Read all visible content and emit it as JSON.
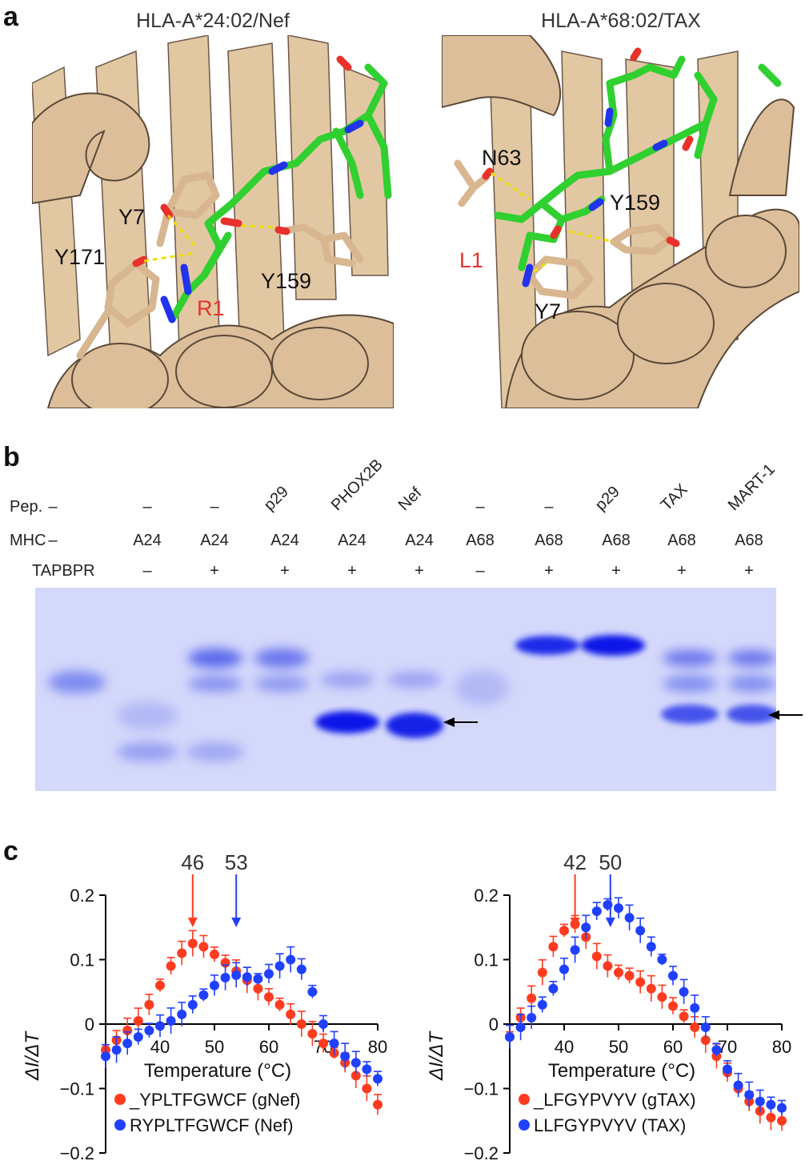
{
  "panel_a": {
    "letter": "a",
    "left": {
      "title": "HLA-A*24:02/Nef",
      "labels": {
        "y7": "Y7",
        "y171": "Y171",
        "y159": "Y159",
        "r1": "R1"
      }
    },
    "right": {
      "title": "HLA-A*68:02/TAX",
      "labels": {
        "n63": "N63",
        "y159": "Y159",
        "l1": "L1",
        "y7": "Y7"
      }
    },
    "colors": {
      "protein": "#dcbf9a",
      "peptide": "#2fd02f",
      "oxygen": "#e8312b",
      "nitrogen": "#2233ee",
      "hbond": "#e8e000",
      "highlight": "#e8312b"
    }
  },
  "panel_b": {
    "letter": "b",
    "row_labels": {
      "pep": "Pep.",
      "mhc": "MHC",
      "tapbpr": "TAPBPR"
    },
    "lanes": [
      {
        "pep": "–",
        "mhc": "–",
        "tapbpr": ""
      },
      {
        "pep": "–",
        "mhc": "A24",
        "tapbpr": "–"
      },
      {
        "pep": "–",
        "mhc": "A24",
        "tapbpr": "+"
      },
      {
        "pep": "p29",
        "mhc": "A24",
        "tapbpr": "+"
      },
      {
        "pep": "PHOX2B",
        "mhc": "A24",
        "tapbpr": "+"
      },
      {
        "pep": "Nef",
        "mhc": "A24",
        "tapbpr": "+"
      },
      {
        "pep": "–",
        "mhc": "A68",
        "tapbpr": "–"
      },
      {
        "pep": "–",
        "mhc": "A68",
        "tapbpr": "+"
      },
      {
        "pep": "p29",
        "mhc": "A68",
        "tapbpr": "+"
      },
      {
        "pep": "TAX",
        "mhc": "A68",
        "tapbpr": "+"
      },
      {
        "pep": "MART-1",
        "mhc": "A68",
        "tapbpr": "+"
      }
    ],
    "gel_color": "#1f2be8"
  },
  "panel_c": {
    "letter": "c",
    "chart_data": [
      {
        "type": "scatter",
        "xlabel": "Temperature (°C)",
        "ylabel": "ΔI/ΔT",
        "xlim": [
          30,
          80
        ],
        "ylim": [
          -0.2,
          0.2
        ],
        "xticks": [
          40,
          50,
          60,
          70,
          80
        ],
        "yticks": [
          -0.2,
          -0.1,
          0,
          0.1,
          0.2
        ],
        "ytick_labels": [
          "−0.2",
          "−0.1",
          "0",
          "0.1",
          "0.2"
        ],
        "legend_position": "bottom-left",
        "annotations": [
          {
            "text": "46",
            "x": 46,
            "color": "#ff3b1f"
          },
          {
            "text": "53",
            "x": 54,
            "color": "#2040ff"
          }
        ],
        "series": [
          {
            "name": "_YPLTFGWCF (gNef)",
            "color": "#ff3b1f",
            "x": [
              30,
              32,
              34,
              36,
              38,
              40,
              42,
              44,
              46,
              48,
              50,
              52,
              54,
              56,
              58,
              60,
              62,
              64,
              66,
              68,
              70,
              72,
              74,
              76,
              78,
              80
            ],
            "y": [
              -0.04,
              -0.025,
              -0.01,
              0.005,
              0.03,
              0.06,
              0.09,
              0.11,
              0.125,
              0.12,
              0.108,
              0.095,
              0.082,
              0.068,
              0.055,
              0.042,
              0.03,
              0.015,
              0.0,
              -0.015,
              -0.03,
              -0.045,
              -0.06,
              -0.08,
              -0.1,
              -0.125
            ]
          },
          {
            "name": "RYPLTFGWCF (Nef)",
            "color": "#2040ff",
            "x": [
              30,
              32,
              34,
              36,
              38,
              40,
              42,
              44,
              46,
              48,
              50,
              52,
              54,
              56,
              58,
              60,
              62,
              64,
              66,
              68,
              70,
              72,
              74,
              76,
              78,
              80
            ],
            "y": [
              -0.05,
              -0.04,
              -0.03,
              -0.02,
              -0.01,
              -0.003,
              0.005,
              0.015,
              0.03,
              0.045,
              0.06,
              0.072,
              0.076,
              0.073,
              0.07,
              0.078,
              0.09,
              0.1,
              0.085,
              0.05,
              0.0,
              -0.03,
              -0.05,
              -0.06,
              -0.07,
              -0.085
            ]
          }
        ]
      },
      {
        "type": "scatter",
        "xlabel": "Temperature (°C)",
        "ylabel": "ΔI/ΔT",
        "xlim": [
          30,
          80
        ],
        "ylim": [
          -0.2,
          0.2
        ],
        "xticks": [
          40,
          50,
          60,
          70,
          80
        ],
        "yticks": [
          -0.2,
          -0.1,
          0,
          0.1,
          0.2
        ],
        "ytick_labels": [
          "−0.2",
          "−0.1",
          "0",
          "0.1",
          "0.2"
        ],
        "legend_position": "bottom-left",
        "annotations": [
          {
            "text": "42",
            "x": 42,
            "color": "#ff3b1f"
          },
          {
            "text": "50",
            "x": 48.5,
            "color": "#2040ff"
          }
        ],
        "series": [
          {
            "name": "_LFGYPVYV (gTAX)",
            "color": "#ff3b1f",
            "x": [
              30,
              32,
              34,
              36,
              38,
              40,
              42,
              44,
              46,
              48,
              50,
              52,
              54,
              56,
              58,
              60,
              62,
              64,
              66,
              68,
              70,
              72,
              74,
              76,
              78,
              80
            ],
            "y": [
              -0.02,
              0.01,
              0.04,
              0.08,
              0.12,
              0.145,
              0.155,
              0.135,
              0.105,
              0.09,
              0.08,
              0.075,
              0.065,
              0.055,
              0.042,
              0.028,
              0.012,
              -0.005,
              -0.025,
              -0.05,
              -0.075,
              -0.1,
              -0.12,
              -0.135,
              -0.145,
              -0.15
            ]
          },
          {
            "name": "LLFGYPVYV (TAX)",
            "color": "#2040ff",
            "x": [
              30,
              32,
              34,
              36,
              38,
              40,
              42,
              44,
              46,
              48,
              50,
              52,
              54,
              56,
              58,
              60,
              62,
              64,
              66,
              68,
              70,
              72,
              74,
              76,
              78,
              80
            ],
            "y": [
              -0.02,
              -0.005,
              0.01,
              0.03,
              0.055,
              0.085,
              0.115,
              0.15,
              0.175,
              0.185,
              0.18,
              0.165,
              0.145,
              0.12,
              0.1,
              0.075,
              0.05,
              0.025,
              -0.005,
              -0.04,
              -0.07,
              -0.095,
              -0.11,
              -0.12,
              -0.125,
              -0.13
            ]
          }
        ]
      }
    ]
  }
}
